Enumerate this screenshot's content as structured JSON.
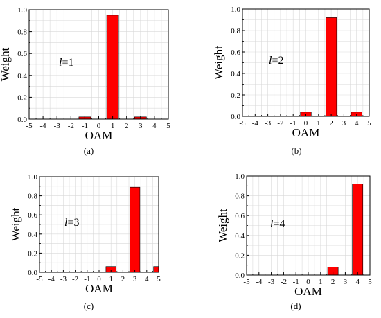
{
  "chart_data": [
    {
      "type": "bar",
      "panel_label": "(a)",
      "annotation": "l=1",
      "xlabel": "OAM",
      "ylabel": "Weight",
      "x": [
        -1,
        1,
        3
      ],
      "values": [
        0.02,
        0.95,
        0.02
      ],
      "xlim": [
        -5,
        5
      ],
      "ylim": [
        0,
        1.0
      ],
      "xticks": [
        "-5",
        "-4",
        "-3",
        "-2",
        "-1",
        "0",
        "1",
        "2",
        "3",
        "4",
        "5"
      ],
      "yticks": [
        "0.0",
        "0.2",
        "0.4",
        "0.6",
        "0.8",
        "1.0"
      ],
      "grid": true,
      "color": "#ff0000"
    },
    {
      "type": "bar",
      "panel_label": "(b)",
      "annotation": "l=2",
      "xlabel": "OAM",
      "ylabel": "Weight",
      "x": [
        0,
        2,
        4
      ],
      "values": [
        0.04,
        0.92,
        0.04
      ],
      "xlim": [
        -5,
        5
      ],
      "ylim": [
        0,
        1.0
      ],
      "xticks": [
        "-5",
        "-4",
        "-3",
        "-2",
        "-1",
        "0",
        "1",
        "2",
        "3",
        "4",
        "5"
      ],
      "yticks": [
        "0.0",
        "0.2",
        "0.4",
        "0.6",
        "0.8",
        "1.0"
      ],
      "grid": true,
      "color": "#ff0000"
    },
    {
      "type": "bar",
      "panel_label": "(c)",
      "annotation": "l=3",
      "xlabel": "OAM",
      "ylabel": "Weight",
      "x": [
        1,
        3,
        5
      ],
      "values": [
        0.06,
        0.89,
        0.06
      ],
      "xlim": [
        -5,
        5
      ],
      "ylim": [
        0,
        1.0
      ],
      "xticks": [
        "-5",
        "-4",
        "-3",
        "-2",
        "-1",
        "0",
        "1",
        "2",
        "3",
        "4",
        "5"
      ],
      "yticks": [
        "0.0",
        "0.2",
        "0.4",
        "0.6",
        "0.8",
        "1.0"
      ],
      "grid": true,
      "color": "#ff0000"
    },
    {
      "type": "bar",
      "panel_label": "(d)",
      "annotation": "l=4",
      "xlabel": "OAM",
      "ylabel": "Weight",
      "x": [
        2,
        4
      ],
      "values": [
        0.08,
        0.92
      ],
      "xlim": [
        -5,
        5
      ],
      "ylim": [
        0,
        1.0
      ],
      "xticks": [
        "-5",
        "-4",
        "-3",
        "-2",
        "-1",
        "0",
        "1",
        "2",
        "3",
        "4",
        "5"
      ],
      "yticks": [
        "0.0",
        "0.2",
        "0.4",
        "0.6",
        "0.8",
        "1.0"
      ],
      "grid": true,
      "color": "#ff0000"
    }
  ]
}
